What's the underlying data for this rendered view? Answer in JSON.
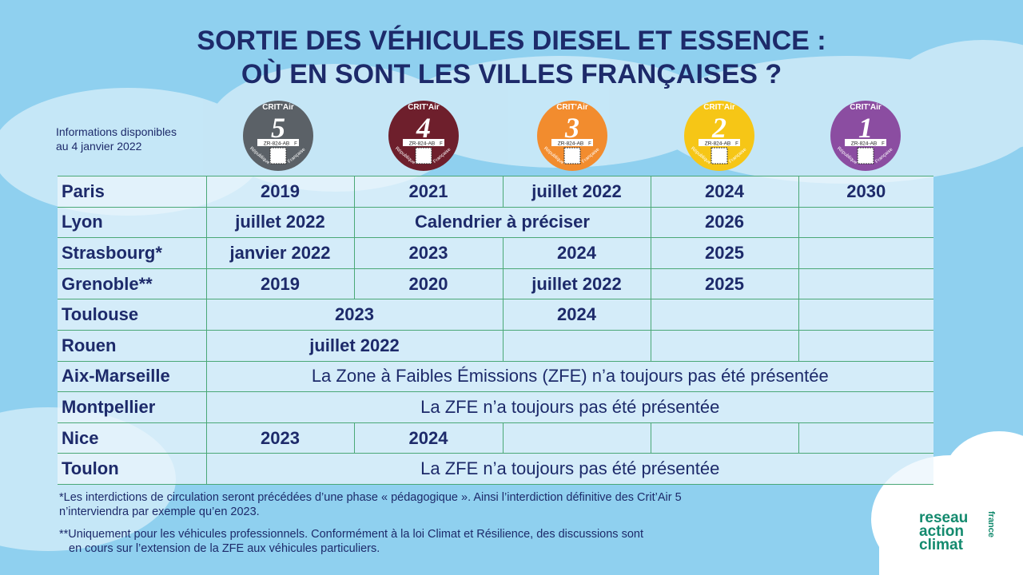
{
  "header": {
    "title_line1": "SORTIE DES VÉHICULES DIESEL ET ESSENCE :",
    "title_line2": "OÙ EN SONT LES VILLES FRANÇAISES ?",
    "info_line1": "Informations disponibles",
    "info_line2": "au 4 janvier 2022"
  },
  "badges": {
    "label": "CRIT'Air",
    "plate": "ZR-824-AB",
    "country_left": "République",
    "country_right": "Française",
    "letter": "F",
    "items": [
      {
        "number": 5,
        "color": "#5b6167"
      },
      {
        "number": 4,
        "color": "#6e1f2c"
      },
      {
        "number": 3,
        "color": "#f28c2e"
      },
      {
        "number": 2,
        "color": "#f6c616"
      },
      {
        "number": 1,
        "color": "#8b4da1"
      }
    ]
  },
  "table": {
    "rows": [
      [
        "Paris",
        "2019",
        "2021",
        "juillet 2022",
        "2024",
        "2030"
      ],
      [
        "Lyon",
        "juillet 2022",
        "Calendrier à préciser",
        "2026"
      ],
      [
        "Strasbourg*",
        "janvier 2022",
        "2023",
        "2024",
        "2025"
      ],
      [
        "Grenoble**",
        "2019",
        "2020",
        "juillet 2022",
        "2025"
      ],
      [
        "Toulouse",
        "2023",
        "2024"
      ],
      [
        "Rouen",
        "juillet 2022"
      ],
      [
        "Aix-Marseille",
        "La Zone à Faibles Émissions (ZFE) n’a toujours pas été présentée"
      ],
      [
        "Montpellier",
        "La ZFE n’a toujours pas été présentée"
      ],
      [
        "Nice",
        "2023",
        "2024"
      ],
      [
        "Toulon",
        "La ZFE n’a toujours pas été présentée"
      ]
    ]
  },
  "footnotes": [
    "*Les interdictions de circulation seront précédées d’une phase « pédagogique ». Ainsi l’interdiction définitive des Crit’Air 5",
    "n’interviendra par exemple qu’en 2023.",
    "**Uniquement pour les véhicules professionnels. Conformément à la loi Climat et Résilience, des discussions sont",
    "en cours sur l’extension de la ZFE aux véhicules particuliers."
  ],
  "logo": {
    "line1": "reseau",
    "line2": "action",
    "line3": "climat",
    "side": "france"
  }
}
